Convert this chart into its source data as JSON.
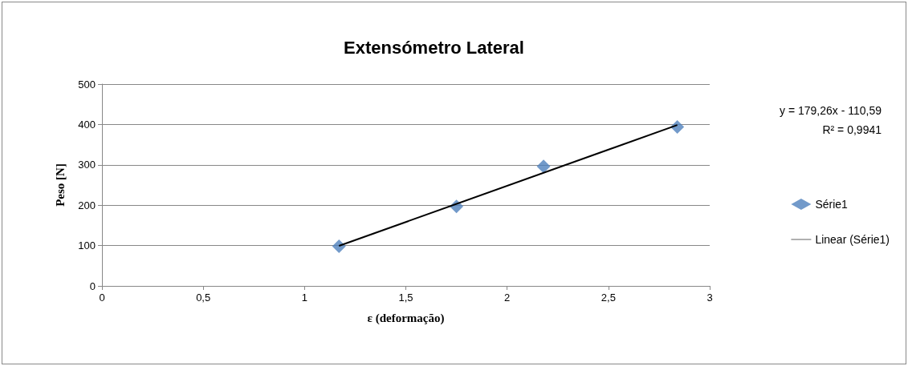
{
  "chart_data": {
    "type": "scatter",
    "title": "Extensómetro Lateral",
    "xlabel": "ε (deformação)",
    "ylabel": "Peso [N]",
    "xlim": [
      0,
      3
    ],
    "xticks": [
      0,
      {
        "value": 0.5,
        "label": "0,5"
      },
      1,
      {
        "value": 1.5,
        "label": "1,5"
      },
      2,
      {
        "value": 2.5,
        "label": "2,5"
      },
      3
    ],
    "ylim": [
      0,
      500
    ],
    "yticks": [
      0,
      100,
      200,
      300,
      400,
      500
    ],
    "series": [
      {
        "name": "Série1",
        "color": "#4f81bd",
        "x": [
          1.17,
          1.75,
          2.18,
          2.84
        ],
        "values": [
          98,
          197,
          296,
          394
        ]
      },
      {
        "name": "Linear (Série1)",
        "type": "line",
        "marker": "none",
        "color": "#000000",
        "x": [
          1.17,
          2.84
        ],
        "values": [
          99.2,
          398.5
        ]
      }
    ],
    "annotations": [
      "y = 179,26x - 110,59",
      "R² = 0,9941"
    ],
    "grid": "y",
    "legend": "right",
    "marker": "diamond",
    "line_style": "solid"
  }
}
